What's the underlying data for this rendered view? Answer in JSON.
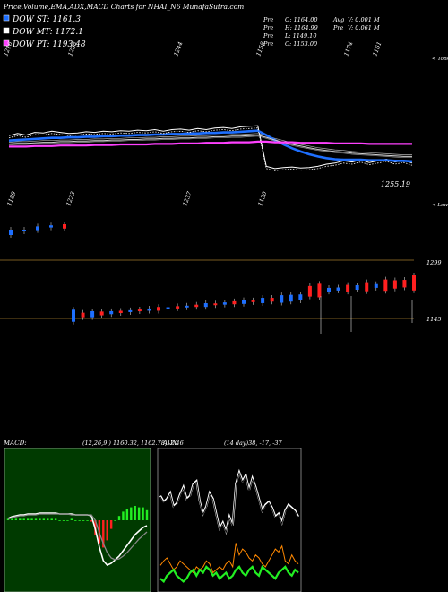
{
  "header": {
    "title": "Price,Volume,EMA,ADX,MACD Charts for NHAI_N6  MunafaSutra.com",
    "legend": [
      {
        "label": "DOW ST: 1161.3",
        "color": "#1e6fff"
      },
      {
        "label": "DOW MT: 1172.1",
        "color": "#ffffff"
      },
      {
        "label": "DOW PT: 1193.48",
        "color": "#ff40ff"
      }
    ],
    "ohlc": [
      [
        "Pre",
        "O: 1164.00"
      ],
      [
        "Pre",
        "H: 1164.99"
      ],
      [
        "Pre",
        "L: 1149.10"
      ],
      [
        "Pre",
        "C: 1153.00"
      ]
    ],
    "volume_stats": [
      [
        "Avg",
        "V: 0.001 M"
      ],
      [
        "Pre",
        "V: 0.061 M"
      ]
    ]
  },
  "colors": {
    "up": "#1e6fff",
    "down": "#ff2020",
    "ema_short": "#1e6fff",
    "ema_long": "#ff40ff",
    "macd_bg": "#003a00",
    "adx_line": "#ffffff",
    "di_plus": "#22ee22",
    "di_minus": "#ff8800",
    "ref_line": "#a0782a"
  },
  "chart_data": [
    {
      "type": "line",
      "panel": "price",
      "ylim": [
        1120,
        1300
      ],
      "x": [
        0,
        1,
        2,
        3,
        4,
        5,
        6,
        7,
        8,
        9,
        10,
        11,
        12,
        13,
        14,
        15,
        16,
        17,
        18,
        19,
        20,
        21,
        22,
        23,
        24,
        25,
        26,
        27,
        28,
        29,
        30,
        31,
        32,
        33,
        34,
        35,
        36,
        37,
        38,
        39,
        40,
        41,
        42,
        43,
        44,
        45,
        46,
        47
      ],
      "series": [
        {
          "name": "",
          "style": "price-white",
          "values": [
            1208,
            1212,
            1209,
            1214,
            1213,
            1216,
            1214,
            1212,
            1213,
            1215,
            1214,
            1216,
            1215,
            1217,
            1216,
            1218,
            1217,
            1219,
            1216,
            1219,
            1220,
            1218,
            1221,
            1219,
            1222,
            1223,
            1221,
            1224,
            1225,
            1226,
            1152,
            1148,
            1150,
            1151,
            1149,
            1150,
            1152,
            1156,
            1158,
            1162,
            1160,
            1164,
            1159,
            1162,
            1165,
            1160,
            1163,
            1158
          ]
        },
        {
          "name": "",
          "style": "ema-blue",
          "values": [
            1199,
            1200,
            1201,
            1202,
            1203,
            1204,
            1204,
            1205,
            1205,
            1206,
            1206,
            1207,
            1207,
            1208,
            1208,
            1209,
            1209,
            1210,
            1210,
            1211,
            1211,
            1212,
            1212,
            1213,
            1213,
            1214,
            1214,
            1215,
            1216,
            1217,
            1209,
            1200,
            1192,
            1185,
            1179,
            1174,
            1170,
            1167,
            1165,
            1164,
            1164,
            1164,
            1163,
            1163,
            1163,
            1162,
            1162,
            1161
          ]
        },
        {
          "name": "",
          "style": "ema-mid",
          "values": [
            1193,
            1194,
            1194,
            1195,
            1196,
            1196,
            1197,
            1197,
            1198,
            1198,
            1199,
            1199,
            1200,
            1200,
            1201,
            1201,
            1202,
            1202,
            1203,
            1203,
            1204,
            1204,
            1205,
            1205,
            1206,
            1206,
            1207,
            1207,
            1208,
            1209,
            1205,
            1200,
            1196,
            1192,
            1189,
            1186,
            1183,
            1181,
            1179,
            1178,
            1176,
            1175,
            1174,
            1173,
            1172,
            1171,
            1170,
            1170
          ]
        },
        {
          "name": "",
          "style": "ema-long",
          "values": [
            1188,
            1188,
            1188,
            1189,
            1189,
            1189,
            1190,
            1190,
            1190,
            1190,
            1191,
            1191,
            1191,
            1192,
            1192,
            1192,
            1192,
            1193,
            1193,
            1193,
            1194,
            1194,
            1194,
            1195,
            1195,
            1195,
            1196,
            1196,
            1196,
            1197,
            1197,
            1196,
            1196,
            1196,
            1195,
            1195,
            1195,
            1195,
            1194,
            1194,
            1194,
            1194,
            1193,
            1193,
            1193,
            1193,
            1193,
            1193
          ]
        }
      ],
      "top_labels": [
        "1216",
        "1228",
        "1244",
        "1158",
        "1174",
        "1161"
      ],
      "bottom_labels": [
        "1189",
        "1223",
        "1237",
        "1130"
      ],
      "corner_labels": [
        "< Tops",
        "< Lows"
      ],
      "last_price": "1255.19"
    },
    {
      "type": "bar",
      "panel": "volume-candles",
      "ref_levels": [
        "1299",
        "1145"
      ],
      "candles": [
        {
          "open": 1176,
          "close": 1186,
          "dir": "up"
        },
        {
          "open": 1186,
          "close": 1186,
          "dir": "up"
        },
        {
          "open": 1185,
          "close": 1192,
          "dir": "up"
        },
        {
          "open": 1190,
          "close": 1194,
          "dir": "up"
        },
        {
          "open": 1196,
          "close": 1188,
          "dir": "down"
        }
      ],
      "volume_candles": [
        {
          "dir": "up",
          "v": 0.032
        },
        {
          "dir": "down",
          "v": 0.012
        },
        {
          "dir": "up",
          "v": 0.016
        },
        {
          "dir": "down",
          "v": 0.01
        },
        {
          "dir": "up",
          "v": 0.008
        },
        {
          "dir": "down",
          "v": 0.006
        },
        {
          "dir": "up",
          "v": 0.005
        },
        {
          "dir": "down",
          "v": 0.004
        },
        {
          "dir": "up",
          "v": 0.006
        },
        {
          "dir": "down",
          "v": 0.01
        },
        {
          "dir": "up",
          "v": 0.004
        },
        {
          "dir": "down",
          "v": 0.006
        },
        {
          "dir": "up",
          "v": 0.004
        },
        {
          "dir": "down",
          "v": 0.006
        },
        {
          "dir": "up",
          "v": 0.01
        },
        {
          "dir": "down",
          "v": 0.004
        },
        {
          "dir": "up",
          "v": 0.006
        },
        {
          "dir": "down",
          "v": 0.008
        },
        {
          "dir": "up",
          "v": 0.01
        },
        {
          "dir": "down",
          "v": 0.004
        },
        {
          "dir": "up",
          "v": 0.014
        },
        {
          "dir": "down",
          "v": 0.01
        },
        {
          "dir": "up",
          "v": 0.02
        },
        {
          "dir": "up",
          "v": 0.018
        },
        {
          "dir": "up",
          "v": 0.016
        },
        {
          "dir": "down",
          "v": 0.028
        },
        {
          "dir": "down",
          "v": 0.036
        },
        {
          "dir": "up",
          "v": 0.01
        },
        {
          "dir": "up",
          "v": 0.008
        },
        {
          "dir": "down",
          "v": 0.018
        },
        {
          "dir": "up",
          "v": 0.012
        },
        {
          "dir": "down",
          "v": 0.024
        },
        {
          "dir": "up",
          "v": 0.01
        },
        {
          "dir": "down",
          "v": 0.03
        },
        {
          "dir": "down",
          "v": 0.022
        },
        {
          "dir": "down",
          "v": 0.02
        },
        {
          "dir": "down",
          "v": 0.04
        }
      ]
    },
    {
      "type": "line",
      "panel": "macd",
      "title": "MACD",
      "params": "(12,26,9 ) 1160.32,  1162.78,  -2.46",
      "series": [
        {
          "name": "",
          "values": [
            2,
            4,
            5,
            6,
            6,
            7,
            7,
            7,
            8,
            8,
            8,
            8,
            8,
            7,
            7,
            7,
            7,
            6,
            6,
            6,
            6,
            5,
            -10,
            -30,
            -45,
            -50,
            -48,
            -44,
            -40,
            -34,
            -28,
            -22,
            -16,
            -12,
            -8,
            -6
          ]
        },
        {
          "name": "",
          "values": [
            1,
            3,
            4,
            5,
            5,
            6,
            6,
            6,
            7,
            7,
            7,
            7,
            7,
            7,
            7,
            7,
            6,
            6,
            6,
            6,
            6,
            6,
            0,
            -14,
            -26,
            -36,
            -42,
            -44,
            -43,
            -40,
            -36,
            -31,
            -26,
            -21,
            -17,
            -13
          ]
        }
      ],
      "histogram": [
        1,
        1,
        1,
        1,
        1,
        1,
        1,
        1,
        1,
        1,
        1,
        1,
        1,
        0,
        0,
        0,
        1,
        0,
        0,
        0,
        0,
        -1,
        -10,
        -16,
        -19,
        -14,
        -6,
        0,
        3,
        6,
        8,
        9,
        10,
        9,
        9,
        7
      ]
    },
    {
      "type": "line",
      "panel": "adx",
      "title": "ADX",
      "params": "(14 day)38,  -17,  -37",
      "series": [
        {
          "name": "",
          "values": [
            62,
            58,
            60,
            64,
            55,
            57,
            63,
            68,
            60,
            62,
            70,
            72,
            58,
            50,
            55,
            64,
            60,
            50,
            40,
            44,
            38,
            48,
            42,
            70,
            78,
            72,
            76,
            66,
            74,
            68,
            60,
            52,
            56,
            58,
            54,
            48,
            50,
            44,
            52,
            56,
            54,
            52,
            48
          ]
        },
        {
          "name": "",
          "values": [
            15,
            18,
            20,
            16,
            12,
            14,
            18,
            16,
            14,
            12,
            10,
            14,
            12,
            14,
            18,
            16,
            10,
            12,
            14,
            12,
            16,
            18,
            14,
            30,
            22,
            26,
            24,
            20,
            18,
            22,
            20,
            16,
            14,
            18,
            22,
            26,
            24,
            28,
            18,
            16,
            22,
            18,
            16
          ]
        },
        {
          "name": "",
          "values": [
            6,
            4,
            8,
            10,
            12,
            8,
            6,
            4,
            6,
            10,
            12,
            8,
            12,
            10,
            14,
            12,
            8,
            10,
            6,
            8,
            10,
            6,
            8,
            12,
            14,
            10,
            8,
            12,
            14,
            10,
            8,
            14,
            12,
            10,
            8,
            6,
            10,
            12,
            14,
            10,
            8,
            12,
            10
          ]
        }
      ]
    }
  ]
}
